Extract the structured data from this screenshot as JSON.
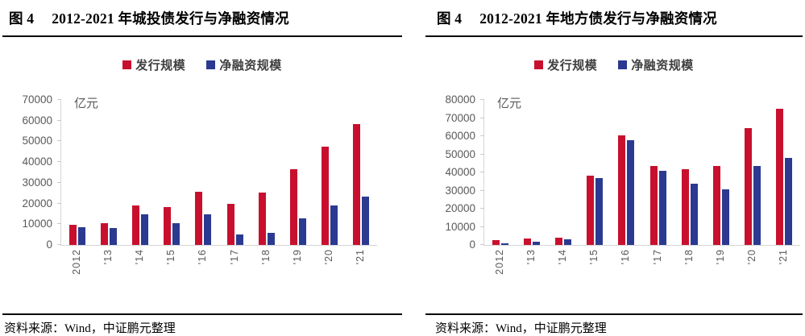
{
  "colors": {
    "issue_red": "#c8102e",
    "net_blue": "#2b3a90",
    "axis_line": "#d6d6d6",
    "tick_text": "#595959"
  },
  "panels": [
    {
      "title_prefix": "图 4",
      "title_text": "2012-2021 年城投债发行与净融资情况",
      "unit_label": "亿元",
      "source_text": "资料来源：Wind，中证鹏元整理",
      "legend": [
        {
          "label": "发行规模",
          "color": "#c8102e"
        },
        {
          "label": "净融资规模",
          "color": "#2b3a90"
        }
      ]
    },
    {
      "title_prefix": "图 4",
      "title_text": "2012-2021 年地方债发行与净融资情况",
      "unit_label": "亿元",
      "source_text": "资料来源：Wind，中证鹏元整理",
      "legend": [
        {
          "label": "发行规模",
          "color": "#c8102e"
        },
        {
          "label": "净融资规模",
          "color": "#2b3a90"
        }
      ]
    }
  ],
  "chart_data": [
    {
      "type": "bar",
      "title": "图 4 2012-2021 年城投债发行与净融资情况",
      "categories": [
        "2012",
        "'13",
        "'14",
        "'15",
        "'16",
        "'17",
        "'18",
        "'19",
        "'20",
        "'21"
      ],
      "series": [
        {
          "name": "发行规模",
          "color": "#c8102e",
          "values": [
            9800,
            10400,
            19000,
            18400,
            25800,
            20000,
            25300,
            36500,
            47300,
            58400
          ]
        },
        {
          "name": "净融资规模",
          "color": "#2b3a90",
          "values": [
            8600,
            8300,
            14800,
            10400,
            14600,
            5000,
            5800,
            12700,
            19000,
            23300
          ]
        }
      ],
      "xlabel": "",
      "ylabel": "亿元",
      "ylim": [
        0,
        70000
      ],
      "ytick_step": 10000,
      "grid": false,
      "legend_position": "top"
    },
    {
      "type": "bar",
      "title": "图 4 2012-2021 年地方债发行与净融资情况",
      "categories": [
        "2012",
        "'13",
        "'14",
        "'15",
        "'16",
        "'17",
        "'18",
        "'19",
        "'20",
        "'21"
      ],
      "series": [
        {
          "name": "发行规模",
          "color": "#c8102e",
          "values": [
            2500,
            3500,
            4100,
            38400,
            60500,
            43600,
            41600,
            43600,
            64400,
            74900
          ]
        },
        {
          "name": "净融资规模",
          "color": "#2b3a90",
          "values": [
            700,
            2000,
            3100,
            36800,
            58000,
            41000,
            33600,
            30600,
            43700,
            48100
          ]
        }
      ],
      "xlabel": "",
      "ylabel": "亿元",
      "ylim": [
        0,
        80000
      ],
      "ytick_step": 10000,
      "grid": false,
      "legend_position": "top"
    }
  ]
}
